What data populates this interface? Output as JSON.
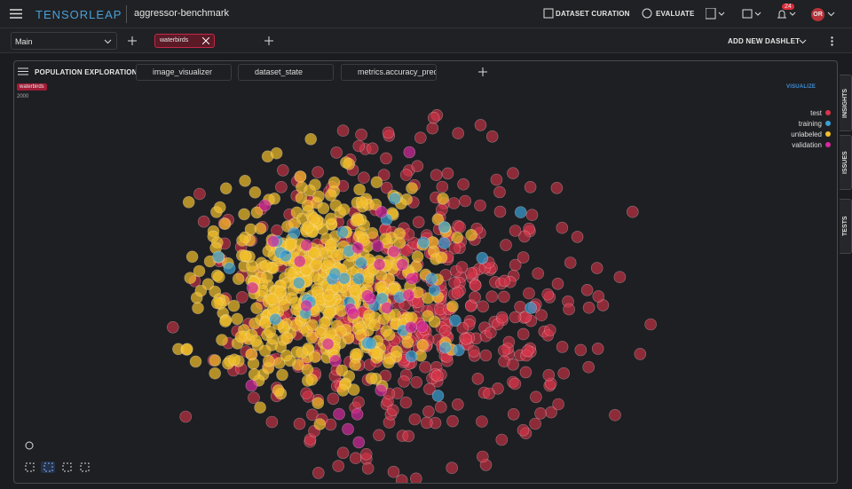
{
  "header": {
    "brand": "TENSORLEAP",
    "project": "aggressor-benchmark",
    "nav": [
      "DATASET CURATION",
      "EVALUATE"
    ],
    "notifications": 24,
    "avatar": "OR"
  },
  "toolbar": {
    "dashboard": "Main",
    "filter_chip": "waterbirds",
    "add_dashlet": "ADD NEW DASHLET"
  },
  "dashlet": {
    "title": "POPULATION EXPLORATION",
    "selectors": [
      "image_visualizer",
      "dataset_state",
      "metrics.accuracy_predi"
    ],
    "tag": "waterbirds",
    "sample_count": 2000,
    "visualize": "VISUALIZE",
    "legend": [
      {
        "name": "test",
        "color": "#d9344a"
      },
      {
        "name": "training",
        "color": "#3a9fd6"
      },
      {
        "name": "unlabeled",
        "color": "#f2bf2b"
      },
      {
        "name": "validation",
        "color": "#d42a9c"
      }
    ]
  },
  "side_tabs": [
    "INSIGHTS",
    "ISSUES",
    "TESTS"
  ]
}
